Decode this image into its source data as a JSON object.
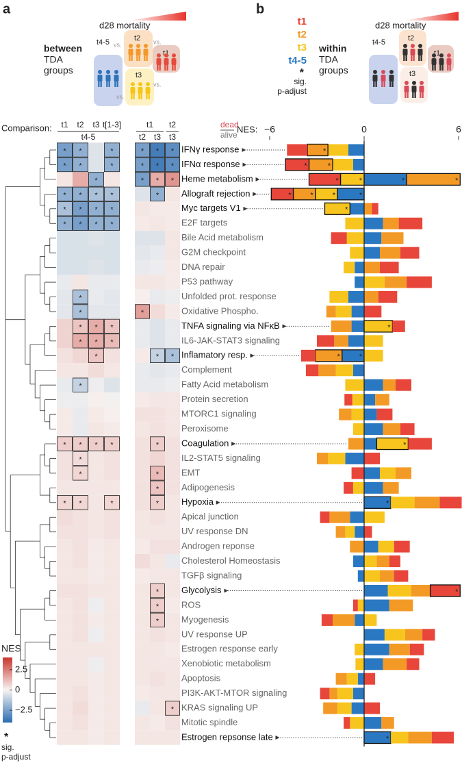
{
  "chart_data": [
    {
      "type": "heatmap",
      "panel_label": "a",
      "comparison_label": "Comparison:",
      "illustration": {
        "scale_label": "d28 mortality",
        "title": [
          "between",
          "TDA",
          "groups"
        ],
        "groups": [
          "t4-5",
          "t2",
          "t1",
          "t3"
        ],
        "vs_label": "vs."
      },
      "column_groups": [
        {
          "top": [
            "t1",
            "t2",
            "t3",
            "t[1-3]"
          ],
          "bottom": [
            "t4-5"
          ]
        },
        {
          "top": [
            "t1",
            "t2"
          ],
          "bottom": [
            "t2",
            "t3",
            "t3"
          ]
        }
      ],
      "values": [
        [
          -2.5,
          -2,
          -0.5,
          -2,
          -2.5,
          -3.5,
          -3
        ],
        [
          -2.5,
          -2,
          -0.5,
          -2,
          -2.5,
          -3.5,
          -3
        ],
        [
          0.3,
          1.5,
          -2,
          0.3,
          -2.5,
          1.5,
          2
        ],
        [
          -2,
          -2,
          -1.5,
          -1.5,
          -0.5,
          -2,
          0.3
        ],
        [
          -1.5,
          -2.5,
          -2,
          -2,
          0.3,
          0.2,
          0.2
        ],
        [
          -2,
          -2.5,
          -2,
          -2,
          0.2,
          0.3,
          0.2
        ],
        [
          -0.6,
          -0.6,
          -0.5,
          -0.6,
          -0.5,
          -0.5,
          0.3
        ],
        [
          -0.6,
          -0.6,
          -0.6,
          -0.6,
          -0.4,
          -0.3,
          0.3
        ],
        [
          -0.6,
          -0.6,
          -0.5,
          -0.6,
          -0.3,
          -0.2,
          0.2
        ],
        [
          -0.3,
          0.3,
          -0.3,
          -0.3,
          0.3,
          0.3,
          0.2
        ],
        [
          -0.4,
          -1.5,
          -0.3,
          -0.4,
          0.1,
          -0.3,
          -0.2
        ],
        [
          -0.4,
          -1.5,
          -0.4,
          -0.4,
          1.8,
          0.5,
          0.2
        ],
        [
          0.7,
          1,
          1.5,
          1,
          -0.3,
          -0.5,
          -0.3
        ],
        [
          0.7,
          1.5,
          1.5,
          1.2,
          -0.3,
          -0.5,
          -0.3
        ],
        [
          0.4,
          0.6,
          1,
          0.4,
          0.2,
          -1,
          -1.5
        ],
        [
          0.3,
          0.3,
          0.5,
          0.3,
          -0.3,
          -0.4,
          -0.3
        ],
        [
          -0.3,
          -1,
          -0.2,
          -0.5,
          -0.3,
          -0.3,
          -0.2
        ],
        [
          -0.2,
          -0.2,
          0.1,
          -0.1,
          0.2,
          0.3,
          0.3
        ],
        [
          0.2,
          -0.3,
          0.2,
          0.1,
          0.4,
          0.4,
          0.3
        ],
        [
          0.2,
          -0.3,
          0.3,
          0.2,
          0.3,
          0.4,
          0.3
        ],
        [
          0.8,
          0.8,
          0.8,
          0.8,
          0.4,
          0.8,
          0.4
        ],
        [
          0.4,
          0.5,
          0.3,
          0.4,
          0.4,
          0.6,
          0.4
        ],
        [
          0.4,
          0.6,
          0.3,
          0.4,
          0.4,
          1.2,
          0.4
        ],
        [
          0.3,
          0.3,
          0.3,
          0.3,
          0.4,
          1,
          0.4
        ],
        [
          0.6,
          0.6,
          0.3,
          0.6,
          0.4,
          0.8,
          0.3
        ],
        [
          0.5,
          0.4,
          0.3,
          0.4,
          0.3,
          0.4,
          0.3
        ],
        [
          0.4,
          0.4,
          0.3,
          0.4,
          0.3,
          0.3,
          0.3
        ],
        [
          0.3,
          0.4,
          0.2,
          0.3,
          0.2,
          0.4,
          0.4
        ],
        [
          0.3,
          0.4,
          0.2,
          0.3,
          0.5,
          0.3,
          -0.3
        ],
        [
          0.3,
          0.3,
          0.2,
          0.3,
          0.2,
          0.3,
          0.3
        ],
        [
          0.4,
          0.4,
          0.3,
          0.3,
          0.3,
          0.8,
          0.3
        ],
        [
          0.3,
          0.4,
          -0.2,
          0.3,
          0.3,
          0.8,
          0.2
        ],
        [
          0.3,
          0.4,
          0.2,
          0.3,
          0.3,
          0.8,
          0.3
        ],
        [
          0.3,
          0.4,
          -0.2,
          0.3,
          0.3,
          0.4,
          0.3
        ],
        [
          0.3,
          0.3,
          0.3,
          0.3,
          0.3,
          0.3,
          0.2
        ],
        [
          0.3,
          0.3,
          -0.2,
          0.3,
          0.3,
          0.3,
          0.3
        ],
        [
          0.3,
          0.3,
          0.2,
          0.3,
          0.3,
          0.4,
          0.3
        ],
        [
          0.3,
          0.4,
          0.2,
          0.3,
          0.2,
          0.3,
          0.3
        ],
        [
          0.3,
          0.5,
          0.2,
          0.3,
          -0.3,
          0.3,
          0.8
        ],
        [
          0.3,
          0.4,
          0.2,
          0.3,
          0.3,
          0.2,
          0.4
        ],
        [
          0.3,
          0.3,
          0.2,
          0.3,
          0.3,
          0.3,
          0.3
        ]
      ],
      "sig": [
        [
          0,
          1,
          3,
          4,
          5,
          6
        ],
        [
          0,
          1,
          3,
          4,
          5,
          6
        ],
        [
          2,
          4,
          5,
          6
        ],
        [
          0,
          1,
          2,
          3,
          5
        ],
        [
          0,
          1,
          2,
          3
        ],
        [
          0,
          1,
          2,
          3
        ],
        [],
        [],
        [],
        [],
        [
          1
        ],
        [
          1,
          4
        ],
        [
          1,
          2,
          3
        ],
        [
          1,
          2,
          3
        ],
        [
          2,
          5,
          6
        ],
        [],
        [
          1
        ],
        [],
        [],
        [],
        [
          0,
          1,
          2,
          3,
          5
        ],
        [
          1
        ],
        [
          1,
          5
        ],
        [
          5
        ],
        [
          0,
          1,
          3,
          5
        ],
        [],
        [],
        [],
        [],
        [],
        [
          5
        ],
        [
          5
        ],
        [
          5
        ],
        [],
        [],
        [],
        [],
        [],
        [
          6
        ],
        [],
        []
      ],
      "sig_symbol": "*",
      "colorbar": {
        "label": "NES",
        "lim": [
          -4,
          4
        ],
        "ticks": [
          2.5,
          0,
          {
            "value": -2.5,
            "label": "−2.5"
          }
        ],
        "sig_label": [
          "sig.",
          "p-adjust"
        ]
      },
      "colors": {
        "low": "#2b6cb0",
        "mid": "#f7f4f2",
        "high": "#c9352d"
      }
    },
    {
      "type": "bar",
      "panel_label": "b",
      "orientation": "horizontal",
      "stacked": true,
      "categories": [
        "IFNγ response",
        "IFNα response",
        "Heme metabolism",
        "Allograft rejection",
        "Myc targets V1",
        "E2F targets",
        "Bile Acid metabolism",
        "G2M checkpoint",
        "DNA repair",
        "P53 pathway",
        "Unfolded prot. response",
        "Oxidative Phospho.",
        "TNFA signaling via NFκB",
        "IL6-JAK-STAT3 signaling",
        "Inflamatory resp.",
        "Complement",
        "Fatty Acid metabolism",
        "Protein secretion",
        "MTORC1 signaling",
        "Peroxisome",
        "Coagulation",
        "IL2-STAT5 signaling",
        "EMT",
        "Adipogenesis",
        "Hypoxia",
        "Apical junction",
        "UV response DN",
        "Androgen reponse",
        "Cholesterol Homeostasis",
        "TGFβ signaling",
        "Glycolysis",
        "ROS",
        "Myogenesis",
        "UV response UP",
        "Estrogen response early",
        "Xenobiotic metabolism",
        "Apoptosis",
        "PI3K-AKT-MTOR signaling",
        "KRAS signaling UP",
        "Mitotic spindle",
        "Estrogen repsonse late"
      ],
      "highlight": [
        0,
        1,
        2,
        3,
        4,
        12,
        14,
        20,
        24,
        30,
        40
      ],
      "xlabel": "NES:",
      "outcome_labels": [
        "dead",
        "alive"
      ],
      "xlim": [
        -6,
        6
      ],
      "xticks": [
        {
          "value": -6,
          "label": "−6"
        },
        0,
        6
      ],
      "series": [
        {
          "name": "t1",
          "color": "#e8463b",
          "values": [
            -1.3,
            -1.5,
            -2.0,
            -1.4,
            0.4,
            1.5,
            -1.0,
            1.2,
            1.2,
            1.6,
            1.2,
            1.1,
            0.8,
            -1.1,
            -0.9,
            -0.8,
            1.0,
            -0.5,
            1.0,
            0.9,
            1.5,
            1.0,
            -0.8,
            -0.6,
            1.4,
            -0.6,
            0.5,
            1.0,
            0.7,
            0.9,
            1.9,
            -0.3,
            -0.7,
            0.8,
            0.9,
            0.8,
            0.7,
            -0.6,
            1.0,
            -0.4,
            1.4
          ],
          "sig": [
            1,
            2,
            3,
            30
          ]
        },
        {
          "name": "t2",
          "color": "#f39a26",
          "values": [
            -1.3,
            -1.5,
            3.4,
            -1.4,
            0.5,
            1.0,
            1.4,
            1.3,
            1.0,
            1.4,
            0.9,
            -0.6,
            -1.3,
            -0.9,
            -1.7,
            -1.1,
            0.8,
            0.9,
            -0.8,
            1.1,
            -1.0,
            -0.7,
            1.0,
            1.0,
            1.6,
            -1.3,
            -0.6,
            -0.9,
            0.8,
            0.9,
            1.2,
            1.5,
            -1.4,
            1.1,
            1.3,
            1.5,
            -0.7,
            -0.5,
            -0.9,
            0.8,
            1.5
          ],
          "sig": [
            0,
            1,
            2,
            3,
            14
          ]
        },
        {
          "name": "t3",
          "color": "#f7c51e",
          "values": [
            -1.3,
            -1.3,
            -1.5,
            -1.4,
            -1.6,
            -1.2,
            -1.1,
            -0.9,
            -0.7,
            1.3,
            -1.2,
            -1.0,
            1.8,
            1.2,
            1.2,
            -1.1,
            -1.2,
            -0.75,
            -0.8,
            -0.7,
            2.0,
            -1.1,
            1.0,
            -0.7,
            1.5,
            1.3,
            -0.6,
            1.0,
            0.8,
            1.0,
            1.5,
            -0.4,
            0.8,
            1.3,
            -0.6,
            -0.55,
            -0.7,
            -1.0,
            -0.9,
            -0.9,
            1.1
          ],
          "sig": [
            2,
            3,
            4,
            12,
            20
          ]
        },
        {
          "name": "t4-5",
          "color": "#2b78c2",
          "values": [
            -1.0,
            -0.7,
            2.7,
            -1.7,
            -0.9,
            1.2,
            1.1,
            1.0,
            -0.6,
            -0.6,
            -1.0,
            -0.8,
            -0.8,
            -1.0,
            -1.4,
            -0.7,
            1.2,
            0.7,
            0.8,
            1.2,
            0.8,
            -1.2,
            1.0,
            1.2,
            1.7,
            -0.9,
            -0.6,
            0.9,
            -0.7,
            -0.4,
            1.5,
            1.6,
            -0.6,
            1.3,
            1.6,
            1.2,
            -0.4,
            -0.7,
            -0.8,
            1.1,
            1.7
          ],
          "sig": [
            2,
            3,
            14,
            24,
            40
          ]
        }
      ],
      "sig_symbol": "*",
      "sig_label": [
        "sig.",
        "p-adjust"
      ],
      "illustration": {
        "scale_label": "d28 mortality",
        "title": [
          "within",
          "TDA",
          "groups"
        ],
        "groups": [
          "t4-5",
          "t2",
          "t3",
          "t1"
        ]
      }
    }
  ]
}
